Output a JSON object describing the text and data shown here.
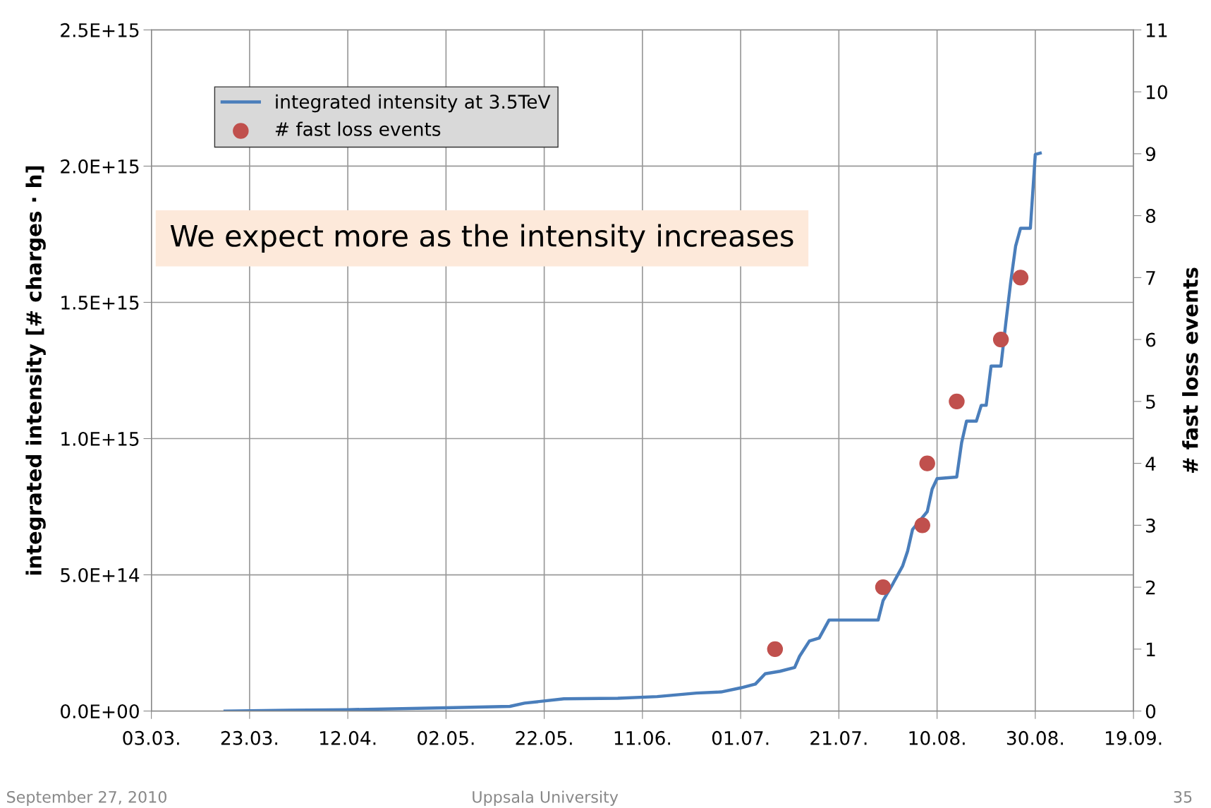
{
  "chart_data": {
    "type": "line",
    "ylabel": "integrated intensity [# charges · h]",
    "y2label": "# fast loss events",
    "annotations": [
      "We expect more as the intensity increases",
      "September 27, 2010",
      "Uppsala University",
      "35"
    ],
    "xlim": [
      "2010-03-03",
      "2010-09-19"
    ],
    "xticks": [
      {
        "value": "2010-03-03",
        "label": "03.03."
      },
      {
        "value": "2010-03-23",
        "label": "23.03."
      },
      {
        "value": "2010-04-12",
        "label": "12.04."
      },
      {
        "value": "2010-05-02",
        "label": "02.05."
      },
      {
        "value": "2010-05-22",
        "label": "22.05."
      },
      {
        "value": "2010-06-11",
        "label": "11.06."
      },
      {
        "value": "2010-07-01",
        "label": "01.07."
      },
      {
        "value": "2010-07-21",
        "label": "21.07."
      },
      {
        "value": "2010-08-10",
        "label": "10.08."
      },
      {
        "value": "2010-08-30",
        "label": "30.08."
      },
      {
        "value": "2010-09-19",
        "label": "19.09."
      }
    ],
    "ylim": [
      0,
      2500000000000000.0
    ],
    "yticks": [
      {
        "value": 0,
        "label": "0.0E+00"
      },
      {
        "value": 500000000000000.0,
        "label": "5.0E+14"
      },
      {
        "value": 1000000000000000.0,
        "label": "1.0E+15"
      },
      {
        "value": 1500000000000000.0,
        "label": "1.5E+15"
      },
      {
        "value": 2000000000000000.0,
        "label": "2.0E+15"
      },
      {
        "value": 2500000000000000.0,
        "label": "2.5E+15"
      }
    ],
    "y2lim": [
      0,
      11
    ],
    "y2ticks": [
      0,
      1,
      2,
      3,
      4,
      5,
      6,
      7,
      8,
      9,
      10,
      11
    ],
    "grid": true,
    "legend": "top left",
    "series": [
      {
        "name": "integrated intensity at 3.5TeV",
        "color": "#4a7ebb",
        "marker": "none",
        "line_style": "solid",
        "x": [
          "2010-03-18",
          "2010-03-31",
          "2010-04-12",
          "2010-05-02",
          "2010-05-15",
          "2010-05-18",
          "2010-05-26",
          "2010-06-06",
          "2010-06-14",
          "2010-06-22",
          "2010-06-27",
          "2010-07-01",
          "2010-07-04",
          "2010-07-06",
          "2010-07-09",
          "2010-07-12",
          "2010-07-13",
          "2010-07-15",
          "2010-07-17",
          "2010-07-19",
          "2010-07-29",
          "2010-07-30",
          "2010-08-01",
          "2010-08-03",
          "2010-08-04",
          "2010-08-05",
          "2010-08-08",
          "2010-08-09",
          "2010-08-10",
          "2010-08-14",
          "2010-08-15",
          "2010-08-16",
          "2010-08-18",
          "2010-08-19",
          "2010-08-20",
          "2010-08-21",
          "2010-08-23",
          "2010-08-24",
          "2010-08-25",
          "2010-08-26",
          "2010-08-27",
          "2010-08-29",
          "2010-08-30",
          "2010-08-31"
        ],
        "values": [
          0,
          3000000000000.0,
          5000000000000.0,
          12000000000000.0,
          17000000000000.0,
          29000000000000.0,
          45000000000000.0,
          47000000000000.0,
          53000000000000.0,
          66000000000000.0,
          70000000000000.0,
          85000000000000.0,
          99000000000000.0,
          137000000000000.0,
          146000000000000.0,
          160000000000000.0,
          201000000000000.0,
          257000000000000.0,
          268000000000000.0,
          334000000000000.0,
          334000000000000.0,
          405000000000000.0,
          467000000000000.0,
          533000000000000.0,
          587000000000000.0,
          666000000000000.0,
          732000000000000.0,
          815000000000000.0,
          853000000000000.0,
          859000000000000.0,
          985000000000000.0,
          1064000000000000.0,
          1064000000000000.0,
          1122000000000000.0,
          1122000000000000.0,
          1266000000000000.0,
          1266000000000000.0,
          1425000000000000.0,
          1575000000000000.0,
          1707000000000000.0,
          1772000000000000.0,
          1772000000000000.0,
          2043000000000000.0,
          2048000000000000.0
        ]
      },
      {
        "name": "# fast loss events",
        "type": "scatter",
        "axis": "y2",
        "color": "#c0504d",
        "marker": "circle",
        "x": [
          "2010-07-08",
          "2010-07-30",
          "2010-08-07",
          "2010-08-08",
          "2010-08-14",
          "2010-08-23",
          "2010-08-27"
        ],
        "values": [
          1,
          2,
          3,
          4,
          5,
          6,
          7
        ]
      }
    ]
  }
}
